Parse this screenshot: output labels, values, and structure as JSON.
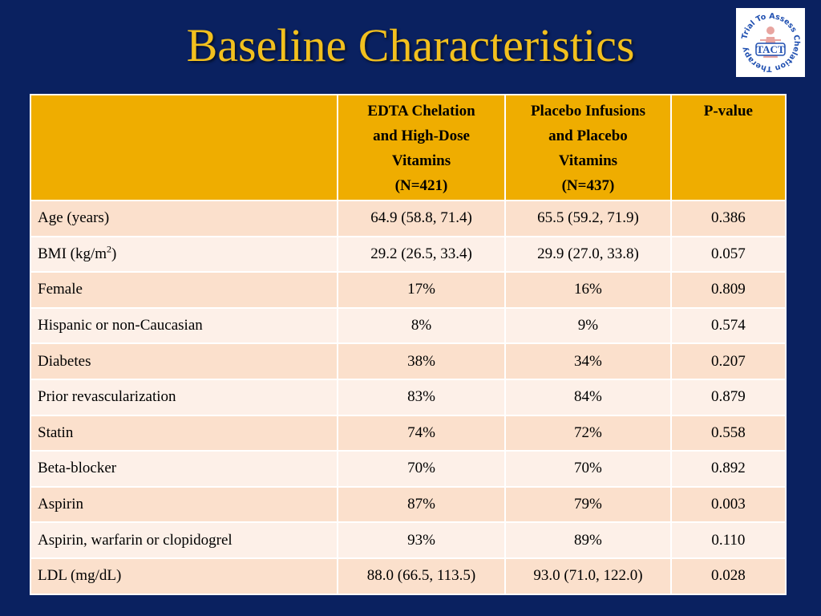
{
  "slide": {
    "title": "Baseline Characteristics"
  },
  "logo": {
    "icon": "tact-logo-icon",
    "acronym": "TACT",
    "ring_text": "Trial To Assess Chelation Therapy",
    "colors": {
      "ring_text": "#1f4fb0",
      "acronym": "#1f4fb0",
      "figure": "#e8a5a0"
    }
  },
  "table": {
    "headers": [
      {
        "lines": []
      },
      {
        "lines": [
          "EDTA Chelation",
          "and High-Dose",
          "Vitamins",
          "(N=421)"
        ]
      },
      {
        "lines": [
          "Placebo Infusions",
          "and Placebo",
          "Vitamins",
          "(N=437)"
        ]
      },
      {
        "lines": [
          "P-value"
        ]
      }
    ],
    "rows": [
      {
        "label": "Age (years)",
        "edta": "64.9 (58.8, 71.4)",
        "placebo": "65.5 (59.2, 71.9)",
        "p": "0.386"
      },
      {
        "label": "BMI (kg/m",
        "label_sup": "2",
        "label_suffix": ")",
        "edta": "29.2 (26.5, 33.4)",
        "placebo": "29.9 (27.0, 33.8)",
        "p": "0.057"
      },
      {
        "label": "Female",
        "edta": "17%",
        "placebo": "16%",
        "p": "0.809"
      },
      {
        "label": "Hispanic or non-Caucasian",
        "edta": "8%",
        "placebo": "9%",
        "p": "0.574"
      },
      {
        "label": "Diabetes",
        "edta": "38%",
        "placebo": "34%",
        "p": "0.207"
      },
      {
        "label": "Prior revascularization",
        "edta": "83%",
        "placebo": "84%",
        "p": "0.879"
      },
      {
        "label": "Statin",
        "edta": "74%",
        "placebo": "72%",
        "p": "0.558"
      },
      {
        "label": "Beta-blocker",
        "edta": "70%",
        "placebo": "70%",
        "p": "0.892"
      },
      {
        "label": "Aspirin",
        "edta": "87%",
        "placebo": "79%",
        "p": "0.003"
      },
      {
        "label": "Aspirin, warfarin or clopidogrel",
        "edta": "93%",
        "placebo": "89%",
        "p": "0.110"
      },
      {
        "label": "LDL (mg/dL)",
        "edta": "88.0 (66.5, 113.5)",
        "placebo": "93.0 (71.0, 122.0)",
        "p": "0.028"
      }
    ]
  },
  "colors": {
    "background": "#0a2160",
    "title": "#f2c01e",
    "header_fill": "#efad00",
    "row_odd": "#fbe0cc",
    "row_even": "#fdf0e8"
  }
}
